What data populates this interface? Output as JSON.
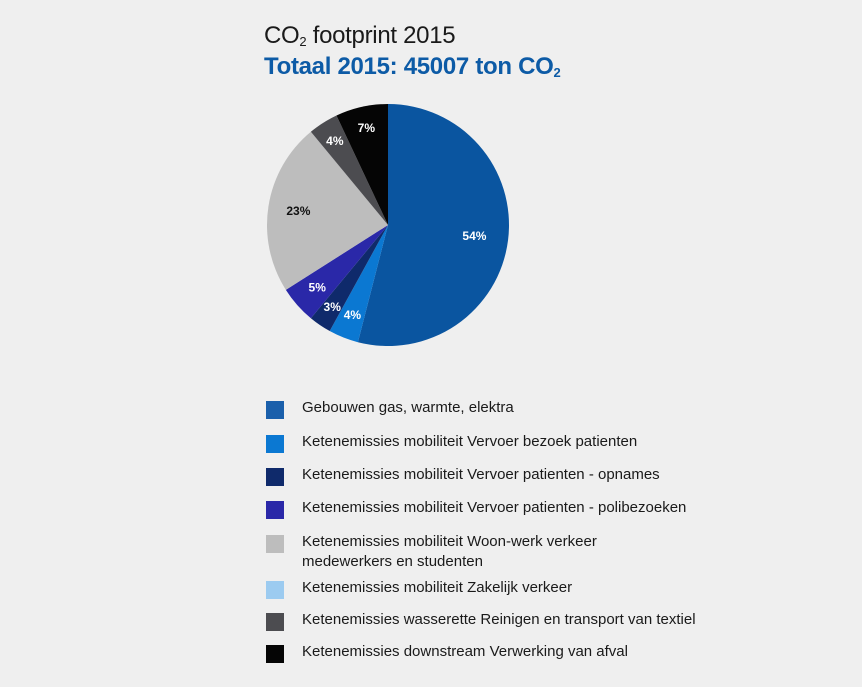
{
  "header": {
    "title_pre": "CO",
    "title_sub": "2",
    "title_post": " footprint 2015",
    "subtitle_pre": "Totaal 2015: 45007 ton CO",
    "subtitle_sub": "2"
  },
  "chart_data": {
    "type": "pie",
    "title": "CO2 footprint 2015",
    "subtitle": "Totaal 2015: 45007 ton CO2",
    "slices": [
      {
        "label": "Gebouwen gas, warmte, elektra",
        "value": 54,
        "display": "54%",
        "color": "#0a55a0"
      },
      {
        "label": "Ketenemissies mobiliteit Vervoer bezoek patienten",
        "value": 4,
        "display": "4%",
        "color": "#0b78d2"
      },
      {
        "label": "Ketenemissies mobiliteit Vervoer patienten - opnames",
        "value": 3,
        "display": "3%",
        "color": "#0f2a6b"
      },
      {
        "label": "Ketenemissies mobiliteit Vervoer patienten - polibezoeken",
        "value": 5,
        "display": "5%",
        "color": "#2a28a8"
      },
      {
        "label": "Ketenemissies mobiliteit Woon-werk verkeer medewerkers en studenten",
        "value": 23,
        "display": "23%",
        "color": "#bdbdbd"
      },
      {
        "label": "Ketenemissies mobiliteit Zakelijk verkeer",
        "value": 0,
        "display": "",
        "color": "#9ccbf0"
      },
      {
        "label": "Ketenemissies wasserette Reinigen en transport van textiel",
        "value": 4,
        "display": "4%",
        "color": "#4c4c50"
      },
      {
        "label": "Ketenemissies downstream Verwerking van afval",
        "value": 7,
        "display": "7%",
        "color": "#050505"
      }
    ]
  },
  "legend": {
    "items": [
      {
        "lines": [
          "Gebouwen gas, warmte, elektra"
        ],
        "color": "#1a5fab"
      },
      {
        "lines": [
          "Ketenemissies mobiliteit Vervoer bezoek patienten"
        ],
        "color": "#0b78d2"
      },
      {
        "lines": [
          "Ketenemissies mobiliteit Vervoer patienten - opnames"
        ],
        "color": "#0f2a6b"
      },
      {
        "lines": [
          "Ketenemissies mobiliteit Vervoer patienten - polibezoeken"
        ],
        "color": "#2a28a8"
      },
      {
        "lines": [
          "Ketenemissies mobiliteit Woon-werk verkeer",
          "medewerkers en studenten"
        ],
        "color": "#bdbdbd"
      },
      {
        "lines": [
          "Ketenemissies mobiliteit Zakelijk verkeer"
        ],
        "color": "#9ccbf0"
      },
      {
        "lines": [
          "Ketenemissies wasserette Reinigen en transport van textiel"
        ],
        "color": "#4c4c50"
      },
      {
        "lines": [
          "Ketenemissies downstream Verwerking van afval"
        ],
        "color": "#050505"
      }
    ]
  }
}
